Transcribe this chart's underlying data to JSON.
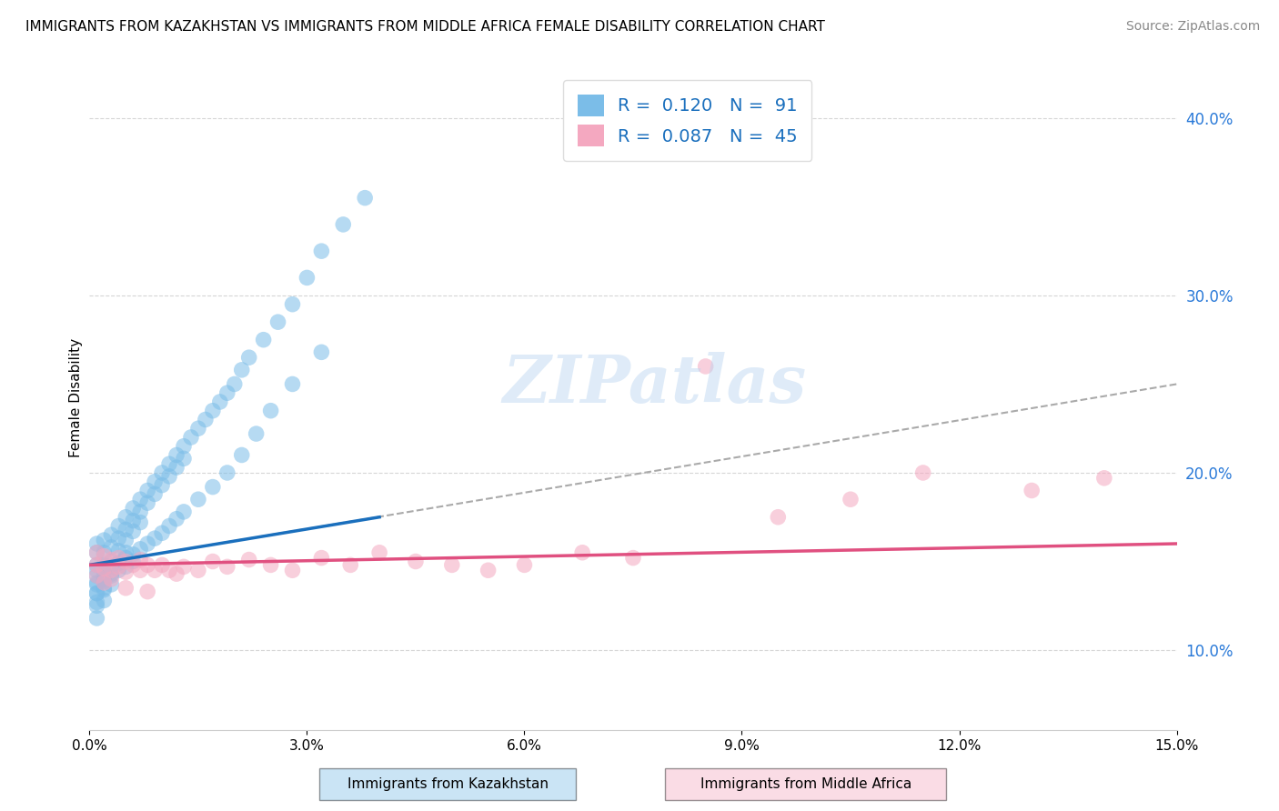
{
  "title": "IMMIGRANTS FROM KAZAKHSTAN VS IMMIGRANTS FROM MIDDLE AFRICA FEMALE DISABILITY CORRELATION CHART",
  "source": "Source: ZipAtlas.com",
  "ylabel": "Female Disability",
  "xlim": [
    0.0,
    0.15
  ],
  "ylim": [
    0.055,
    0.43
  ],
  "xticks": [
    0.0,
    0.03,
    0.06,
    0.09,
    0.12,
    0.15
  ],
  "xtick_labels": [
    "0.0%",
    "3.0%",
    "6.0%",
    "9.0%",
    "12.0%",
    "15.0%"
  ],
  "yticks": [
    0.1,
    0.2,
    0.3,
    0.4
  ],
  "ytick_labels": [
    "10.0%",
    "20.0%",
    "30.0%",
    "40.0%"
  ],
  "color_kaz": "#7bbde8",
  "color_africa": "#f4a8c0",
  "legend1_label": "R =  0.120   N =  91",
  "legend2_label": "R =  0.087   N =  45",
  "watermark": "ZIPatlas",
  "kaz_x": [
    0.001,
    0.001,
    0.001,
    0.001,
    0.001,
    0.001,
    0.001,
    0.001,
    0.002,
    0.002,
    0.002,
    0.002,
    0.002,
    0.002,
    0.003,
    0.003,
    0.003,
    0.003,
    0.003,
    0.004,
    0.004,
    0.004,
    0.004,
    0.005,
    0.005,
    0.005,
    0.005,
    0.006,
    0.006,
    0.006,
    0.007,
    0.007,
    0.007,
    0.008,
    0.008,
    0.009,
    0.009,
    0.01,
    0.01,
    0.011,
    0.011,
    0.012,
    0.012,
    0.013,
    0.013,
    0.014,
    0.015,
    0.016,
    0.017,
    0.018,
    0.019,
    0.02,
    0.021,
    0.022,
    0.024,
    0.026,
    0.028,
    0.03,
    0.032,
    0.035,
    0.038,
    0.001,
    0.001,
    0.001,
    0.001,
    0.002,
    0.002,
    0.002,
    0.003,
    0.003,
    0.004,
    0.004,
    0.005,
    0.005,
    0.006,
    0.006,
    0.007,
    0.008,
    0.009,
    0.01,
    0.011,
    0.012,
    0.013,
    0.015,
    0.017,
    0.019,
    0.021,
    0.023,
    0.025,
    0.028,
    0.032
  ],
  "kaz_y": [
    0.155,
    0.148,
    0.16,
    0.145,
    0.138,
    0.132,
    0.125,
    0.118,
    0.162,
    0.155,
    0.148,
    0.14,
    0.135,
    0.128,
    0.165,
    0.158,
    0.15,
    0.143,
    0.137,
    0.17,
    0.163,
    0.156,
    0.149,
    0.175,
    0.168,
    0.162,
    0.155,
    0.18,
    0.173,
    0.167,
    0.185,
    0.178,
    0.172,
    0.19,
    0.183,
    0.195,
    0.188,
    0.2,
    0.193,
    0.205,
    0.198,
    0.21,
    0.203,
    0.215,
    0.208,
    0.22,
    0.225,
    0.23,
    0.235,
    0.24,
    0.245,
    0.25,
    0.258,
    0.265,
    0.275,
    0.285,
    0.295,
    0.31,
    0.325,
    0.34,
    0.355,
    0.142,
    0.137,
    0.132,
    0.127,
    0.144,
    0.139,
    0.134,
    0.147,
    0.142,
    0.149,
    0.145,
    0.152,
    0.147,
    0.154,
    0.15,
    0.157,
    0.16,
    0.163,
    0.166,
    0.17,
    0.174,
    0.178,
    0.185,
    0.192,
    0.2,
    0.21,
    0.222,
    0.235,
    0.25,
    0.268
  ],
  "africa_x": [
    0.001,
    0.001,
    0.002,
    0.002,
    0.003,
    0.003,
    0.004,
    0.004,
    0.005,
    0.005,
    0.006,
    0.007,
    0.007,
    0.008,
    0.009,
    0.01,
    0.011,
    0.012,
    0.013,
    0.015,
    0.017,
    0.019,
    0.022,
    0.025,
    0.028,
    0.032,
    0.036,
    0.04,
    0.045,
    0.05,
    0.055,
    0.06,
    0.068,
    0.075,
    0.085,
    0.095,
    0.105,
    0.115,
    0.13,
    0.14,
    0.001,
    0.002,
    0.003,
    0.005,
    0.008
  ],
  "africa_y": [
    0.155,
    0.148,
    0.153,
    0.146,
    0.151,
    0.145,
    0.152,
    0.147,
    0.15,
    0.144,
    0.148,
    0.151,
    0.145,
    0.148,
    0.145,
    0.148,
    0.145,
    0.143,
    0.147,
    0.145,
    0.15,
    0.147,
    0.151,
    0.148,
    0.145,
    0.152,
    0.148,
    0.155,
    0.15,
    0.148,
    0.145,
    0.148,
    0.155,
    0.152,
    0.26,
    0.175,
    0.185,
    0.2,
    0.19,
    0.197,
    0.142,
    0.138,
    0.14,
    0.135,
    0.133
  ],
  "kaz_trend": [
    0.0,
    0.04
  ],
  "kaz_trend_y": [
    0.148,
    0.175
  ],
  "africa_trend": [
    0.0,
    0.15
  ],
  "africa_trend_y": [
    0.148,
    0.16
  ],
  "dashed_trend": [
    0.0,
    0.15
  ],
  "dashed_trend_y": [
    0.148,
    0.25
  ]
}
